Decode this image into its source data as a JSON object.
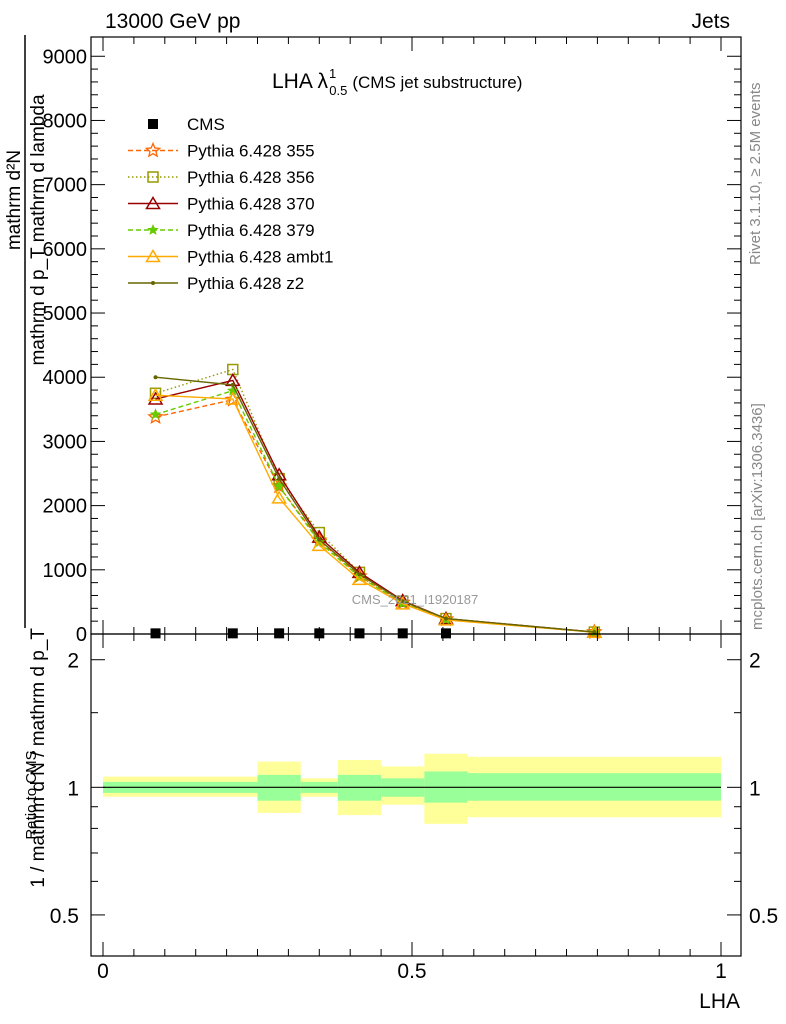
{
  "header": {
    "left": "13000 GeV pp",
    "right": "Jets"
  },
  "side_text": {
    "rivet": "Rivet 3.1.10, ≥ 2.5M events",
    "mcplots": "mcplots.cern.ch [arXiv:1306.3436]"
  },
  "watermark": "CMS_2021_I1920187",
  "colors": {
    "ratio_inner": "#99ff99",
    "ratio_outer": "#ffff99",
    "cms": "#000000"
  },
  "chart_data": [
    {
      "type": "line",
      "title": "LHA λ",
      "title_sup": "1",
      "title_sub": "0.5",
      "subtitle": "(CMS jet substructure)",
      "ylabel_top": "mathrm d²N",
      "ylabel_mid": "mathrm d p_T mathrm d lambda",
      "ylabel_bot": "1 / mathrm d N / mathrm d p_T",
      "xlim": [
        0,
        1
      ],
      "ylim": [
        0,
        9300
      ],
      "yticks": [
        0,
        1000,
        2000,
        3000,
        4000,
        5000,
        6000,
        7000,
        8000,
        9000
      ],
      "ytick_labels": [
        "0",
        "1000",
        "2000",
        "3000",
        "4000",
        "5000",
        "6000",
        "7000",
        "8000",
        "9000"
      ],
      "legend_position": "top-left",
      "series": [
        {
          "name": "CMS",
          "color": "#000000",
          "marker": "square",
          "dash": "none",
          "x": [
            0.085,
            0.21,
            0.285,
            0.35,
            0.415,
            0.485,
            0.555
          ],
          "y": [
            10,
            10,
            10,
            10,
            10,
            10,
            10
          ]
        },
        {
          "name": "Pythia 6.428 355",
          "color": "#ff6600",
          "marker": "star",
          "dash": "5,3",
          "x": [
            0.085,
            0.21,
            0.285,
            0.35,
            0.415,
            0.485,
            0.555,
            0.795
          ],
          "y": [
            3380,
            3650,
            2300,
            1460,
            900,
            490,
            230,
            30
          ]
        },
        {
          "name": "Pythia 6.428 356",
          "color": "#999900",
          "marker": "open-square",
          "dash": "1.5,2.5",
          "x": [
            0.085,
            0.21,
            0.285,
            0.35,
            0.415,
            0.485,
            0.555,
            0.795
          ],
          "y": [
            3750,
            4120,
            2420,
            1580,
            960,
            510,
            240,
            30
          ]
        },
        {
          "name": "Pythia 6.428 370",
          "color": "#990000",
          "marker": "open-triangle",
          "dash": "none",
          "x": [
            0.085,
            0.21,
            0.285,
            0.35,
            0.415,
            0.485,
            0.555,
            0.795
          ],
          "y": [
            3660,
            3950,
            2480,
            1510,
            960,
            520,
            240,
            30
          ]
        },
        {
          "name": "Pythia 6.428 379",
          "color": "#66cc00",
          "marker": "star-small",
          "dash": "5,3",
          "x": [
            0.085,
            0.21,
            0.285,
            0.35,
            0.415,
            0.485,
            0.555,
            0.795
          ],
          "y": [
            3420,
            3790,
            2300,
            1430,
            890,
            480,
            225,
            28
          ]
        },
        {
          "name": "Pythia 6.428 ambt1",
          "color": "#ffaa00",
          "marker": "open-triangle",
          "dash": "none",
          "x": [
            0.085,
            0.21,
            0.285,
            0.35,
            0.415,
            0.485,
            0.555,
            0.795
          ],
          "y": [
            3720,
            3660,
            2120,
            1380,
            850,
            470,
            220,
            28
          ]
        },
        {
          "name": "Pythia 6.428 z2",
          "color": "#666600",
          "marker": "dot",
          "dash": "none",
          "x": [
            0.085,
            0.21,
            0.285,
            0.35,
            0.415,
            0.485,
            0.555,
            0.795
          ],
          "y": [
            4000,
            3880,
            2420,
            1470,
            930,
            510,
            240,
            30
          ]
        }
      ]
    },
    {
      "type": "area",
      "ylabel": "Ratio to CMS",
      "xlabel": "LHA",
      "xlim": [
        0,
        1
      ],
      "ylim": [
        0.4,
        2.3
      ],
      "yscale": "log",
      "yticks": [
        0.5,
        1,
        2
      ],
      "ytick_labels": [
        "0.5",
        "1",
        "2"
      ],
      "xticks": [
        0,
        0.5,
        1
      ],
      "xtick_labels": [
        "0",
        "0.5",
        "1"
      ],
      "bins": [
        {
          "lo": 0.0,
          "hi": 0.25,
          "inner": [
            0.97,
            1.03
          ],
          "outer": [
            0.95,
            1.06
          ]
        },
        {
          "lo": 0.25,
          "hi": 0.32,
          "inner": [
            0.93,
            1.07
          ],
          "outer": [
            0.87,
            1.15
          ]
        },
        {
          "lo": 0.32,
          "hi": 0.38,
          "inner": [
            0.97,
            1.03
          ],
          "outer": [
            0.95,
            1.05
          ]
        },
        {
          "lo": 0.38,
          "hi": 0.45,
          "inner": [
            0.93,
            1.07
          ],
          "outer": [
            0.86,
            1.16
          ]
        },
        {
          "lo": 0.45,
          "hi": 0.52,
          "inner": [
            0.95,
            1.05
          ],
          "outer": [
            0.91,
            1.12
          ]
        },
        {
          "lo": 0.52,
          "hi": 0.59,
          "inner": [
            0.92,
            1.09
          ],
          "outer": [
            0.82,
            1.2
          ]
        },
        {
          "lo": 0.59,
          "hi": 1.0,
          "inner": [
            0.93,
            1.08
          ],
          "outer": [
            0.85,
            1.18
          ]
        }
      ]
    }
  ]
}
